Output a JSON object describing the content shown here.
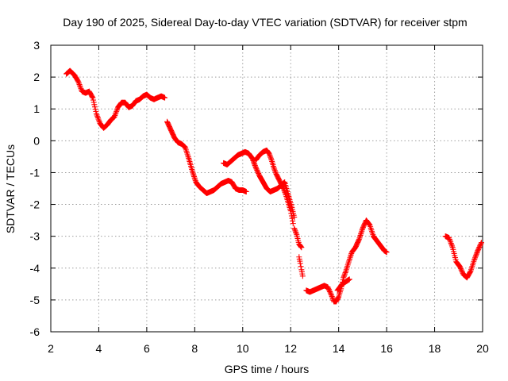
{
  "chart_data": {
    "type": "scatter",
    "title": "Day 190 of 2025, Sidereal Day-to-day VTEC variation (SDTVAR) for receiver stpm",
    "xlabel": "GPS time / hours",
    "ylabel": "SDTVAR / TECUs",
    "xlim": [
      2,
      20
    ],
    "ylim": [
      -6,
      3
    ],
    "xticks": [
      "2",
      "4",
      "6",
      "8",
      "10",
      "12",
      "14",
      "16",
      "18",
      "20"
    ],
    "yticks": [
      "3",
      "2",
      "1",
      "0",
      "-1",
      "-2",
      "-3",
      "-4",
      "-5",
      "-6"
    ],
    "grid": true,
    "legend": "none",
    "marker": "plus",
    "color": "#ff0000",
    "series": [
      {
        "segments": [
          {
            "x": [
              2.65,
              2.8,
              3.0,
              3.15,
              3.3,
              3.45,
              3.6,
              3.75,
              3.9,
              4.05,
              4.2,
              4.35,
              4.5,
              4.65,
              4.8,
              4.95,
              5.1,
              5.25,
              5.4,
              5.55,
              5.7,
              5.85,
              6.0,
              6.15,
              6.3,
              6.45,
              6.6,
              6.75
            ],
            "y": [
              2.1,
              2.2,
              2.05,
              1.85,
              1.55,
              1.5,
              1.55,
              1.35,
              0.85,
              0.55,
              0.4,
              0.5,
              0.65,
              0.75,
              1.05,
              1.2,
              1.2,
              1.05,
              1.1,
              1.25,
              1.3,
              1.4,
              1.45,
              1.35,
              1.3,
              1.35,
              1.4,
              1.35
            ]
          },
          {
            "x": [
              6.85,
              7.0,
              7.15,
              7.3,
              7.45,
              7.6,
              7.75,
              7.9,
              8.05,
              8.2,
              8.35,
              8.5,
              8.65,
              8.8,
              8.95,
              9.1,
              9.25,
              9.4,
              9.55,
              9.7,
              9.85,
              10.0,
              10.15
            ],
            "y": [
              0.6,
              0.35,
              0.1,
              -0.05,
              -0.1,
              -0.2,
              -0.55,
              -0.95,
              -1.3,
              -1.45,
              -1.55,
              -1.65,
              -1.6,
              -1.55,
              -1.45,
              -1.35,
              -1.3,
              -1.25,
              -1.3,
              -1.5,
              -1.55,
              -1.55,
              -1.6
            ]
          },
          {
            "x": [
              9.2,
              9.35,
              9.5,
              9.65,
              9.8,
              9.95,
              10.1,
              10.25,
              10.4,
              10.55,
              10.7,
              10.85,
              11.0,
              11.15,
              11.3,
              11.45,
              11.6,
              11.75,
              11.9,
              12.05,
              12.15
            ],
            "y": [
              -0.7,
              -0.75,
              -0.65,
              -0.55,
              -0.45,
              -0.4,
              -0.35,
              -0.4,
              -0.55,
              -0.85,
              -1.1,
              -1.3,
              -1.5,
              -1.6,
              -1.55,
              -1.5,
              -1.4,
              -1.3,
              -1.7,
              -2.1,
              -2.4
            ]
          },
          {
            "x": [
              10.55,
              10.7,
              10.85,
              11.0,
              11.1,
              11.2,
              11.3,
              11.4,
              11.5,
              11.6,
              11.7,
              11.8,
              11.9,
              12.0,
              12.1
            ],
            "y": [
              -0.6,
              -0.45,
              -0.35,
              -0.3,
              -0.4,
              -0.6,
              -0.85,
              -1.05,
              -1.2,
              -1.35,
              -1.5,
              -1.7,
              -1.95,
              -2.2,
              -2.6
            ]
          },
          {
            "x": [
              12.15,
              12.25,
              12.35,
              12.45
            ],
            "y": [
              -2.75,
              -2.95,
              -3.25,
              -3.35
            ]
          },
          {
            "x": [
              12.35,
              12.4,
              12.45,
              12.5
            ],
            "y": [
              -3.65,
              -3.85,
              -4.05,
              -4.25
            ]
          },
          {
            "x": [
              12.65,
              12.8,
              12.95,
              13.1,
              13.25,
              13.4,
              13.55,
              13.7,
              13.8,
              13.9,
              14.0,
              14.1,
              14.2,
              14.3,
              14.4,
              14.55,
              14.7,
              14.85,
              15.0,
              15.15,
              15.3,
              15.45,
              15.6,
              15.75,
              15.9,
              16.0
            ],
            "y": [
              -4.7,
              -4.75,
              -4.7,
              -4.65,
              -4.6,
              -4.55,
              -4.6,
              -4.85,
              -5.05,
              -5.05,
              -4.9,
              -4.65,
              -4.3,
              -4.1,
              -3.85,
              -3.5,
              -3.35,
              -3.1,
              -2.75,
              -2.5,
              -2.65,
              -3.0,
              -3.15,
              -3.3,
              -3.45,
              -3.5
            ]
          },
          {
            "x": [
              13.95,
              14.05,
              14.15,
              14.25,
              14.35,
              14.45
            ],
            "y": [
              -4.7,
              -4.6,
              -4.5,
              -4.45,
              -4.4,
              -4.35
            ]
          },
          {
            "x": [
              18.45,
              18.6,
              18.75,
              18.9,
              19.05,
              19.2,
              19.35,
              19.5,
              19.65,
              19.8,
              19.95
            ],
            "y": [
              -3.0,
              -3.05,
              -3.35,
              -3.8,
              -3.95,
              -4.2,
              -4.3,
              -4.1,
              -3.75,
              -3.45,
              -3.2
            ]
          }
        ]
      }
    ]
  }
}
